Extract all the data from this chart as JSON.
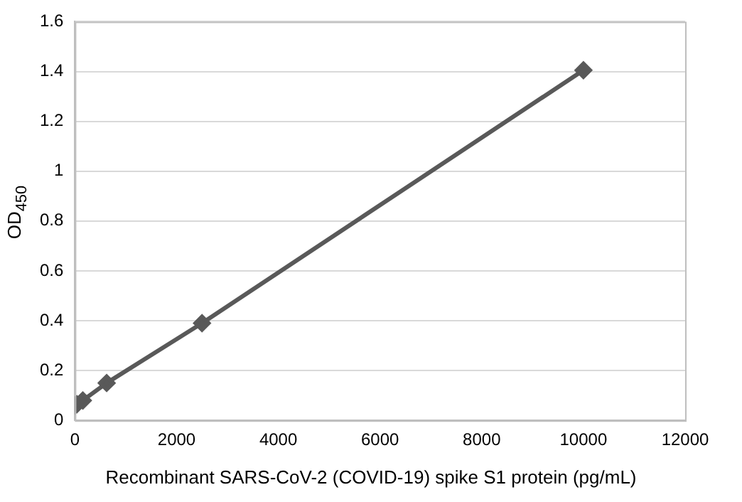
{
  "chart_data": {
    "type": "line",
    "xlabel": "Recombinant SARS-CoV-2 (COVID-19) spike S1 protein (pg/mL)",
    "ylabel": "OD$_{450}$",
    "series": [
      {
        "color": "#595959",
        "x": [
          0,
          39,
          156,
          625,
          2500,
          10000
        ],
        "values": [
          0.06,
          0.065,
          0.08,
          0.15,
          0.39,
          1.405
        ]
      }
    ],
    "xlim": [
      0,
      12000
    ],
    "xticks": [
      0,
      2000,
      4000,
      6000,
      8000,
      10000,
      12000
    ],
    "ylim": [
      0,
      1.6
    ],
    "yticks": [
      0,
      0.2,
      0.4,
      0.6,
      0.8,
      1,
      1.2,
      1.4,
      1.6
    ],
    "grid": "y",
    "marker": "diamond",
    "line_style": "solid",
    "legend": false
  }
}
